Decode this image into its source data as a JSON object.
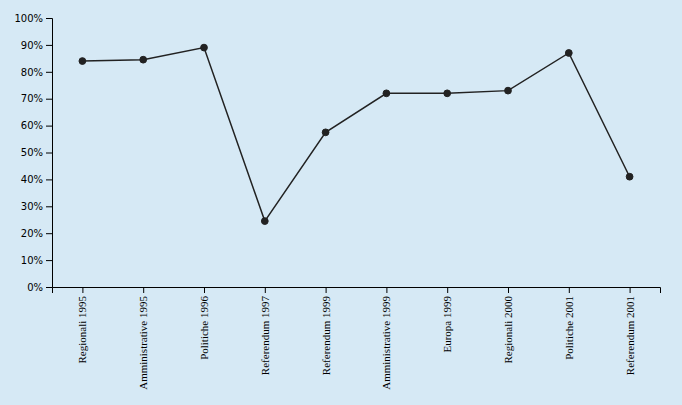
{
  "chart_data": {
    "type": "line",
    "categories": [
      "Regionali 1995",
      "Amministrative 1995",
      "Politiche 1996",
      "Referendum 1997",
      "Referendum 1999",
      "Amministrative 1999",
      "Europa 1999",
      "Regionali 2000",
      "Politiche 2001",
      "Referendum 2001"
    ],
    "values": [
      0.84,
      0.845,
      0.89,
      0.245,
      0.575,
      0.72,
      0.72,
      0.73,
      0.87,
      0.41
    ],
    "color": "#222222",
    "marker": "circle",
    "ylim": [
      0,
      1.0
    ],
    "yticks": [
      {
        "value": 0.0,
        "label": "0%"
      },
      {
        "value": 0.1,
        "label": "10%"
      },
      {
        "value": 0.2,
        "label": "20%"
      },
      {
        "value": 0.3,
        "label": "30%"
      },
      {
        "value": 0.4,
        "label": "40%"
      },
      {
        "value": 0.5,
        "label": "50%"
      },
      {
        "value": 0.6,
        "label": "60%"
      },
      {
        "value": 0.7,
        "label": "70%"
      },
      {
        "value": 0.8,
        "label": "80%"
      },
      {
        "value": 0.9,
        "label": "90%"
      },
      {
        "value": 1.0,
        "label": "100%"
      }
    ],
    "grid": false
  }
}
